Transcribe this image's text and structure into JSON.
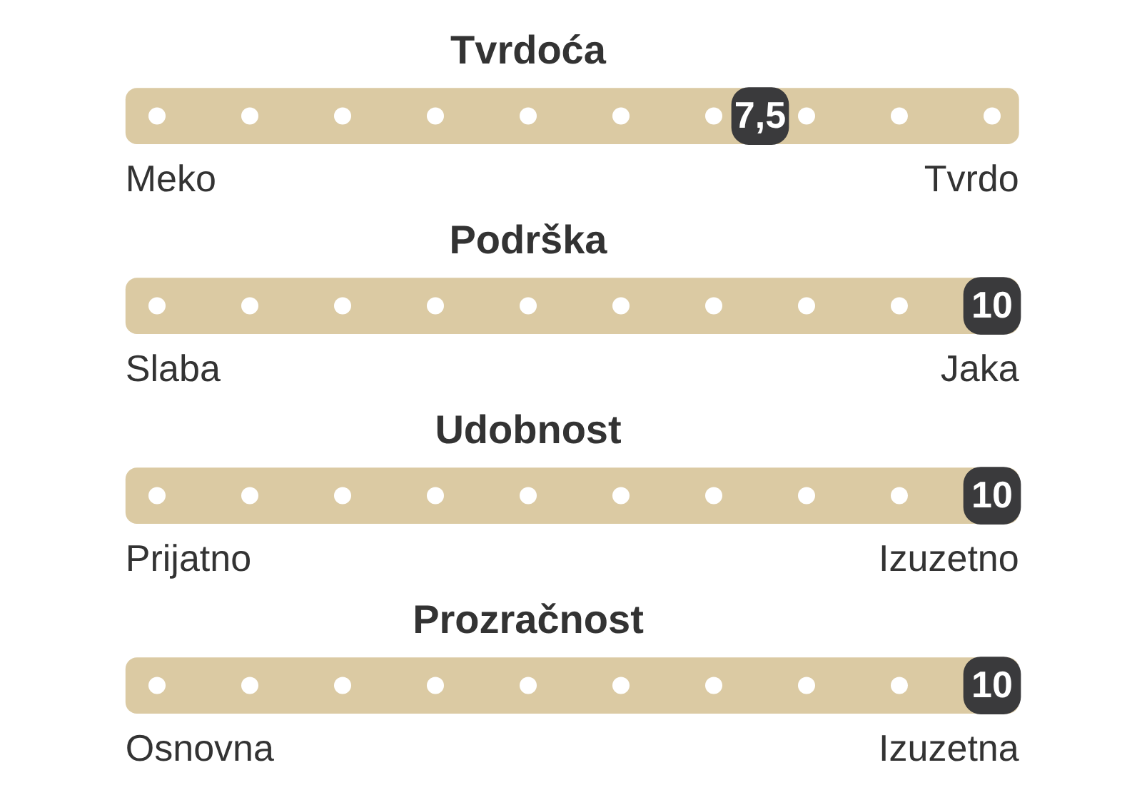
{
  "chart_data": [
    {
      "type": "other",
      "title": "Tvrdoća",
      "values": [
        7.5
      ],
      "value_labels": [
        "7,5"
      ],
      "color": "#3a3a3c",
      "annotations": [
        "Meko",
        "Tvrdo"
      ]
    },
    {
      "type": "other",
      "title": "Podrška",
      "values": [
        10
      ],
      "value_labels": [
        "10"
      ],
      "color": "#3a3a3c",
      "annotations": [
        "Slaba",
        "Jaka"
      ]
    },
    {
      "type": "other",
      "title": "Udobnost",
      "values": [
        10
      ],
      "value_labels": [
        "10"
      ],
      "color": "#3a3a3c",
      "annotations": [
        "Prijatno",
        "Izuzetno"
      ]
    },
    {
      "type": "other",
      "title": "Prozračnost",
      "values": [
        10
      ],
      "value_labels": [
        "10"
      ],
      "color": "#3a3a3c",
      "annotations": [
        "Osnovna",
        "Izuzetna"
      ]
    }
  ]
}
